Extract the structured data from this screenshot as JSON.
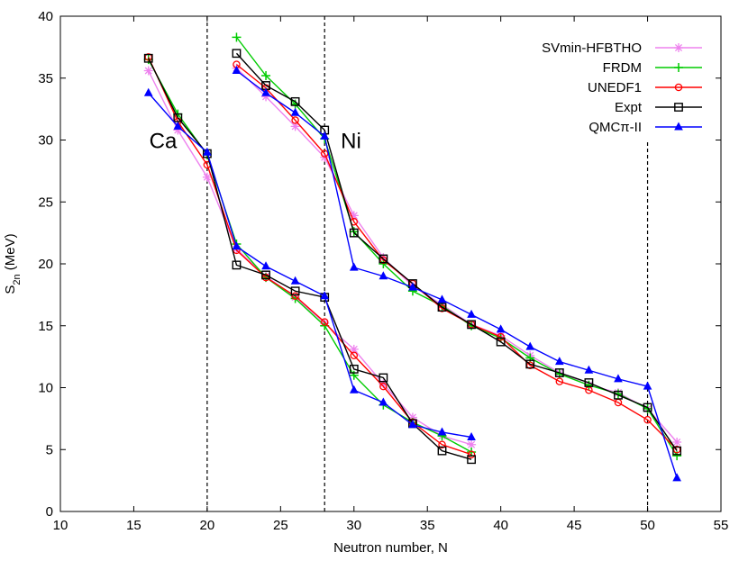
{
  "chart_data": {
    "type": "line",
    "xlabel": "Neutron number, N",
    "ylabel_main": "S",
    "ylabel_sub": "2n",
    "ylabel_unit": " (MeV)",
    "xlim": [
      10,
      55
    ],
    "ylim": [
      0,
      40
    ],
    "xticks": [
      10,
      15,
      20,
      25,
      30,
      35,
      40,
      45,
      50,
      55
    ],
    "yticks": [
      0,
      5,
      10,
      15,
      20,
      25,
      30,
      35,
      40
    ],
    "xtick_labels": [
      "10",
      "15",
      "20",
      "25",
      "30",
      "35",
      "40",
      "45",
      "50",
      "55"
    ],
    "ytick_labels": [
      "0",
      "5",
      "10",
      "15",
      "20",
      "25",
      "30",
      "35",
      "40"
    ],
    "grid": false,
    "legend_position": "top-right",
    "annotations": [
      {
        "text": "Ca",
        "x": 17,
        "y": 30
      },
      {
        "text": "Ni",
        "x": 29.8,
        "y": 30
      }
    ],
    "vlines": [
      20,
      28,
      50
    ],
    "vline_tops": [
      40,
      40,
      30
    ],
    "series": [
      {
        "name": "SVmin-HFBTHO",
        "color": "#ee82ee",
        "marker": "star",
        "segments": [
          {
            "x": [
              16,
              18,
              20,
              22,
              24,
              26,
              28,
              30,
              32,
              34,
              36,
              38
            ],
            "y": [
              35.6,
              30.8,
              27.0,
              21.2,
              19.0,
              17.3,
              15.2,
              13.1,
              10.3,
              7.6,
              6.1,
              5.4
            ]
          },
          {
            "x": [
              22,
              24,
              26,
              28,
              30,
              32,
              34,
              36,
              38,
              40,
              42,
              44,
              46,
              48,
              50,
              52
            ],
            "y": [
              35.8,
              33.5,
              31.1,
              28.6,
              23.9,
              20.5,
              18.2,
              16.7,
              15.1,
              14.2,
              12.6,
              11.2,
              10.2,
              9.6,
              8.3,
              5.6
            ]
          }
        ]
      },
      {
        "name": "FRDM",
        "color": "#00cc00",
        "marker": "plus",
        "segments": [
          {
            "x": [
              16,
              18,
              20,
              22,
              24,
              26,
              28,
              30,
              32,
              34,
              36,
              38
            ],
            "y": [
              36.5,
              32.1,
              28.8,
              21.6,
              18.9,
              17.2,
              15.0,
              11.0,
              8.6,
              7.2,
              6.1,
              4.8
            ]
          },
          {
            "x": [
              22,
              24,
              26,
              28,
              30,
              32,
              34,
              36,
              38,
              40,
              42,
              44,
              46,
              48,
              50,
              52
            ],
            "y": [
              38.3,
              35.2,
              32.9,
              30.1,
              22.6,
              20.0,
              17.8,
              16.6,
              15.0,
              14.0,
              12.4,
              11.1,
              10.2,
              9.5,
              8.3,
              4.5
            ]
          }
        ]
      },
      {
        "name": "UNEDF1",
        "color": "#ff0000",
        "marker": "circle",
        "segments": [
          {
            "x": [
              16,
              18,
              20,
              22,
              24,
              26,
              28,
              30,
              32,
              34,
              36,
              38
            ],
            "y": [
              36.7,
              31.5,
              28.0,
              21.1,
              18.9,
              17.4,
              15.3,
              12.6,
              10.1,
              7.2,
              5.4,
              4.6
            ]
          },
          {
            "x": [
              22,
              24,
              26,
              28,
              30,
              32,
              34,
              36,
              38,
              40,
              42,
              44,
              46,
              48,
              50,
              52
            ],
            "y": [
              36.1,
              34.2,
              31.6,
              28.9,
              23.4,
              20.3,
              18.4,
              16.4,
              15.1,
              14.1,
              11.8,
              10.5,
              9.8,
              8.8,
              7.4,
              5.0
            ]
          }
        ]
      },
      {
        "name": "Expt",
        "color": "#000000",
        "marker": "square",
        "segments": [
          {
            "x": [
              16,
              18,
              20,
              22,
              24,
              26,
              28,
              30,
              32,
              34,
              36,
              38
            ],
            "y": [
              36.6,
              31.8,
              28.9,
              19.9,
              19.1,
              17.8,
              17.3,
              11.5,
              10.8,
              7.1,
              4.9,
              4.2
            ]
          },
          {
            "x": [
              22,
              24,
              26,
              28,
              30,
              32,
              34,
              36,
              38,
              40,
              42,
              44,
              46,
              48,
              50,
              52
            ],
            "y": [
              37.0,
              34.4,
              33.1,
              30.8,
              22.5,
              20.4,
              18.4,
              16.5,
              15.1,
              13.7,
              11.9,
              11.2,
              10.4,
              9.4,
              8.4,
              4.9
            ]
          }
        ]
      },
      {
        "name": "QMCπ-II",
        "color": "#0000ff",
        "marker": "triangle",
        "segments": [
          {
            "x": [
              16,
              18,
              20,
              22,
              24,
              26,
              28,
              30,
              32,
              34,
              36,
              38
            ],
            "y": [
              33.8,
              31.1,
              29.0,
              21.4,
              19.8,
              18.6,
              17.4,
              9.8,
              8.8,
              7.0,
              6.4,
              6.0
            ]
          },
          {
            "x": [
              22,
              24,
              26,
              28,
              30,
              32,
              34,
              36,
              38,
              40,
              42,
              44,
              46,
              48,
              50,
              52
            ],
            "y": [
              35.6,
              33.8,
              32.2,
              30.3,
              19.7,
              19.0,
              18.1,
              17.1,
              15.9,
              14.7,
              13.3,
              12.1,
              11.4,
              10.7,
              10.1,
              2.7
            ]
          }
        ]
      }
    ]
  }
}
